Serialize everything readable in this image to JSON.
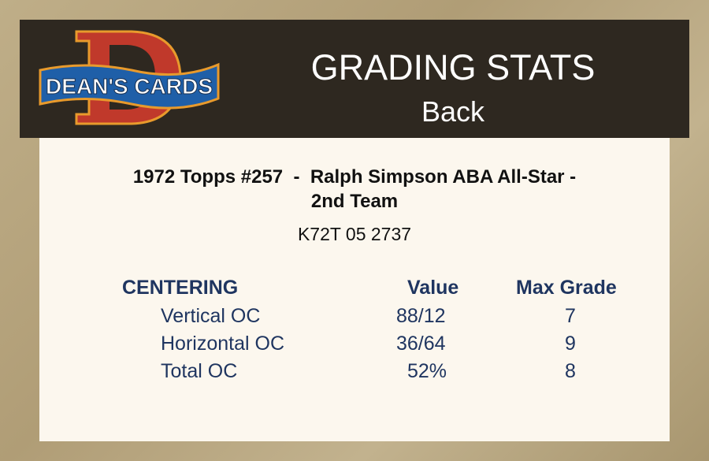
{
  "header": {
    "logo_text": "DEAN'S CARDS",
    "title": "GRADING STATS",
    "subtitle": "Back"
  },
  "card": {
    "title": "1972 Topps #257  -  Ralph Simpson ABA All-Star -\n2nd Team",
    "cert": "K72T 05 2737"
  },
  "table": {
    "headers": [
      "CENTERING",
      "Value",
      "Max Grade"
    ],
    "rows": [
      {
        "label": "Vertical OC",
        "value": "88/12",
        "max_grade": "7"
      },
      {
        "label": "Horizontal OC",
        "value": "36/64",
        "max_grade": "9"
      },
      {
        "label": "Total OC",
        "value": "52%",
        "max_grade": "8"
      }
    ]
  },
  "colors": {
    "header_bg": "#2e2820",
    "panel_bg": "#fcf7ee",
    "text_navy": "#1f3560",
    "logo_red": "#c0392b",
    "logo_blue": "#1f5fa8"
  }
}
